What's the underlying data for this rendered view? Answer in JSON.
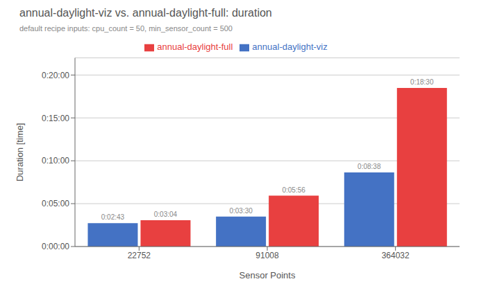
{
  "chart_data": {
    "type": "bar",
    "title": "annual-daylight-viz vs. annual-daylight-full: duration",
    "subtitle": "default recipe inputs: cpu_count = 50, min_sensor_count = 500",
    "xlabel": "Sensor Points",
    "ylabel": "Duration [time]",
    "categories": [
      "22752",
      "91008",
      "364032"
    ],
    "series": [
      {
        "name": "annual-daylight-viz",
        "color": "#4472C4",
        "values": [
          163,
          210,
          518
        ],
        "value_labels": [
          "0:02:43",
          "0:03:30",
          "0:08:38"
        ]
      },
      {
        "name": "annual-daylight-full",
        "color": "#E84040",
        "values": [
          184,
          356,
          1110
        ],
        "value_labels": [
          "0:03:04",
          "0:05:56",
          "0:18:30"
        ]
      }
    ],
    "ylim": [
      0,
      1320
    ],
    "yticks": [
      {
        "value": 0,
        "label": "0:00:00"
      },
      {
        "value": 300,
        "label": "0:05:00"
      },
      {
        "value": 600,
        "label": "0:10:00"
      },
      {
        "value": 900,
        "label": "0:15:00"
      },
      {
        "value": 1200,
        "label": "0:20:00"
      }
    ],
    "grid": true,
    "legend": "top",
    "data_labels": true
  }
}
